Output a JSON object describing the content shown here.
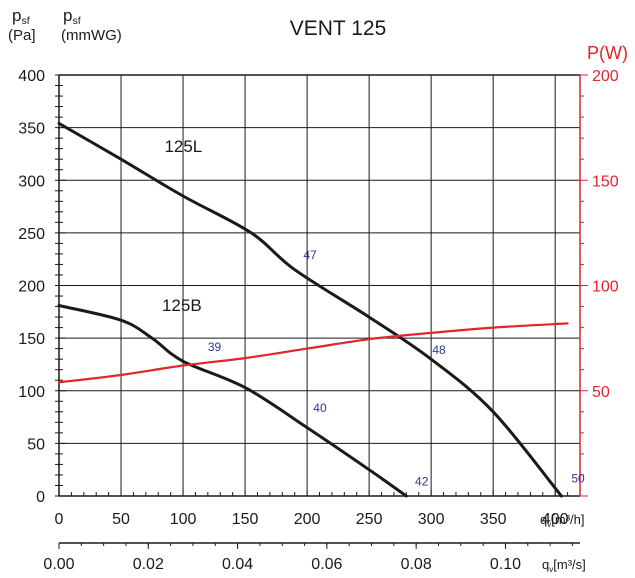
{
  "chart_data": {
    "type": "line",
    "title": "VENT 125",
    "left_axis": {
      "label": "p",
      "label_sub": "sf",
      "unit": "(Pa]",
      "range": [
        0,
        400
      ],
      "ticks": [
        "0",
        "50",
        "100",
        "150",
        "200",
        "250",
        "300",
        "350",
        "400"
      ]
    },
    "left_axis_alt": {
      "label": "p",
      "label_sub": "sf",
      "unit": "(mmWG)"
    },
    "right_axis": {
      "label": "P(W)",
      "range": [
        0,
        200
      ],
      "ticks": [
        "50",
        "100",
        "150",
        "200"
      ]
    },
    "x_axis": {
      "label_prefix": "q",
      "label_sub": "v",
      "label": "[m³/h]",
      "range": [
        0,
        420
      ],
      "ticks": [
        "0",
        "50",
        "100",
        "150",
        "200",
        "250",
        "300",
        "350",
        "400"
      ]
    },
    "x_axis_alt": {
      "label_prefix": "q",
      "label_sub": "v",
      "label": "[m³/s]",
      "range_secondary": [
        0,
        0.1167
      ],
      "ticks": [
        "0.00",
        "0.02",
        "0.04",
        "0.06",
        "0.08",
        "0.10"
      ],
      "tick_values": [
        0,
        0.02,
        0.04,
        0.06,
        0.08,
        0.1
      ]
    },
    "grid": true,
    "series": [
      {
        "name": "125L",
        "axis": "left",
        "color": "#1a1a1a",
        "points": [
          [
            0,
            354
          ],
          [
            50,
            320
          ],
          [
            100,
            285
          ],
          [
            155,
            250
          ],
          [
            190,
            215
          ],
          [
            250,
            170
          ],
          [
            300,
            130
          ],
          [
            350,
            80
          ],
          [
            405,
            0
          ]
        ]
      },
      {
        "name": "125B",
        "axis": "left",
        "color": "#1a1a1a",
        "points": [
          [
            0,
            181
          ],
          [
            50,
            167
          ],
          [
            75,
            150
          ],
          [
            100,
            128
          ],
          [
            150,
            103
          ],
          [
            200,
            65
          ],
          [
            250,
            25
          ],
          [
            280,
            0
          ]
        ]
      },
      {
        "name": "",
        "axis": "right",
        "color": "#e0262b",
        "points": [
          [
            0,
            54
          ],
          [
            50,
            57.5
          ],
          [
            100,
            62
          ],
          [
            150,
            65.5
          ],
          [
            200,
            70
          ],
          [
            250,
            74.5
          ],
          [
            300,
            77.5
          ],
          [
            350,
            80
          ],
          [
            410,
            82
          ]
        ]
      }
    ],
    "annotations": [
      {
        "text": "125L",
        "x": 85,
        "y": 327,
        "size": "large"
      },
      {
        "text": "125B",
        "x": 83,
        "y": 176,
        "size": "large"
      },
      {
        "text": "47",
        "x": 197,
        "y": 225,
        "size": "small"
      },
      {
        "text": "39",
        "x": 120,
        "y": 138,
        "size": "small"
      },
      {
        "text": "48",
        "x": 301,
        "y": 135,
        "size": "small"
      },
      {
        "text": "40",
        "x": 205,
        "y": 80,
        "size": "small"
      },
      {
        "text": "42",
        "x": 287,
        "y": 10,
        "size": "small"
      },
      {
        "text": "50",
        "x": 413,
        "y": 13,
        "size": "small"
      }
    ]
  }
}
